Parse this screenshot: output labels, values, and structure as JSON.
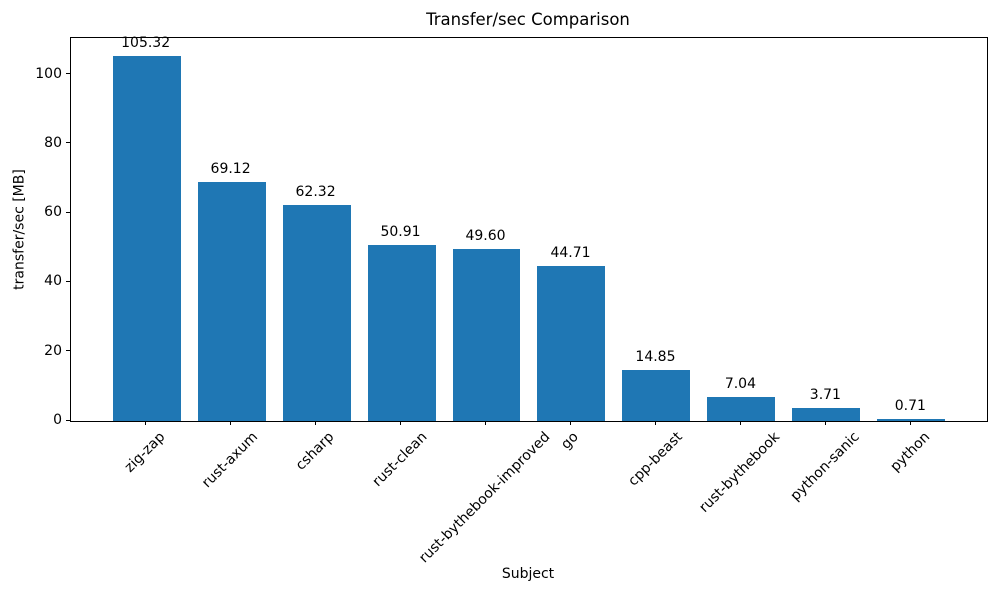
{
  "chart_data": {
    "type": "bar",
    "title": "Transfer/sec Comparison",
    "xlabel": "Subject",
    "ylabel": "transfer/sec [MB]",
    "categories": [
      "zig-zap",
      "rust-axum",
      "csharp",
      "rust-clean",
      "rust-bythebook-improved",
      "go",
      "cpp-beast",
      "rust-bythebook",
      "python-sanic",
      "python"
    ],
    "values": [
      105.32,
      69.12,
      62.32,
      50.91,
      49.6,
      44.71,
      14.85,
      7.04,
      3.71,
      0.71
    ],
    "value_labels": [
      "105.32",
      "69.12",
      "62.32",
      "50.91",
      "49.60",
      "44.71",
      "14.85",
      "7.04",
      "3.71",
      "0.71"
    ],
    "yticks": [
      "0",
      "20",
      "40",
      "60",
      "80",
      "100"
    ],
    "ytick_values": [
      0,
      20,
      40,
      60,
      80,
      100
    ],
    "ylim": [
      0,
      110.6
    ],
    "bar_color": "#1f77b4",
    "grid": false,
    "legend": null
  }
}
